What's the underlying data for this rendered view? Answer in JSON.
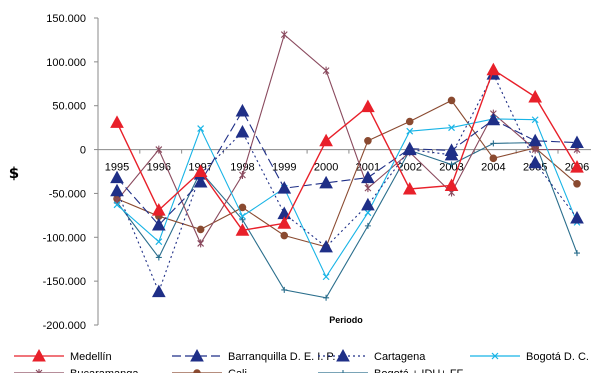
{
  "chart_data": {
    "type": "line",
    "title": "",
    "xlabel": "Periodo",
    "ylabel": "$",
    "ylim": [
      -200000,
      150000
    ],
    "y_ticks": [
      "150.000",
      "100.000",
      "50.000",
      "0",
      "-50.000",
      "-100.000",
      "-150.000",
      "-200.000"
    ],
    "y_tick_values": [
      150000,
      100000,
      50000,
      0,
      -50000,
      -100000,
      -150000,
      -200000
    ],
    "x": [
      "1995",
      "1996",
      "1997",
      "1998",
      "1999",
      "2000",
      "2001",
      "2002",
      "2003",
      "2004",
      "2005",
      "2006"
    ],
    "grid": false,
    "legend_position": "bottom",
    "series": [
      {
        "name": "Medellín",
        "color": "#e8202a",
        "marker": "triangle",
        "dash": "solid",
        "values": [
          31000,
          -69000,
          -25000,
          -92000,
          -84000,
          10000,
          49000,
          -45000,
          -41000,
          91000,
          60000,
          -20000
        ]
      },
      {
        "name": "Barranquilla D. E. I. P.",
        "color": "#1f2f87",
        "marker": "triangle",
        "dash": "long-dash",
        "values": [
          -32000,
          -86000,
          -37000,
          44000,
          -44000,
          -38000,
          -32000,
          1000,
          -1000,
          34000,
          10000,
          8000
        ]
      },
      {
        "name": "Cartagena",
        "color": "#1f2f87",
        "marker": "triangle",
        "dash": "dotted",
        "values": [
          -47000,
          -162000,
          -28000,
          20000,
          -73000,
          -111000,
          -63000,
          0,
          -6000,
          86000,
          -15000,
          -78000
        ]
      },
      {
        "name": "Bogotá D. C.",
        "color": "#18b4e6",
        "marker": "x",
        "dash": "solid",
        "values": [
          -63000,
          -105000,
          24000,
          -76000,
          -44000,
          -145000,
          -72000,
          21000,
          25000,
          35000,
          34000,
          -83000
        ]
      },
      {
        "name": "Bucaramanga",
        "color": "#8a4a5e",
        "marker": "asterisk",
        "dash": "solid",
        "values": [
          -58000,
          0,
          -107000,
          -29000,
          131000,
          90000,
          -44000,
          -3000,
          -49000,
          41000,
          0,
          0
        ]
      },
      {
        "name": "Cali",
        "color": "#8a4a30",
        "marker": "circle",
        "dash": "solid",
        "values": [
          -56000,
          -76000,
          -91000,
          -66000,
          -98000,
          -111000,
          10000,
          32000,
          56000,
          -10000,
          2000,
          -39000
        ]
      },
      {
        "name": "Bogotá + IDU+ FF",
        "color": "#2a6e8c",
        "marker": "plus",
        "dash": "solid",
        "values": [
          -60000,
          -123000,
          -25000,
          -80000,
          -160000,
          -169000,
          -87000,
          -1000,
          -17000,
          7000,
          8000,
          -118000
        ]
      }
    ]
  }
}
